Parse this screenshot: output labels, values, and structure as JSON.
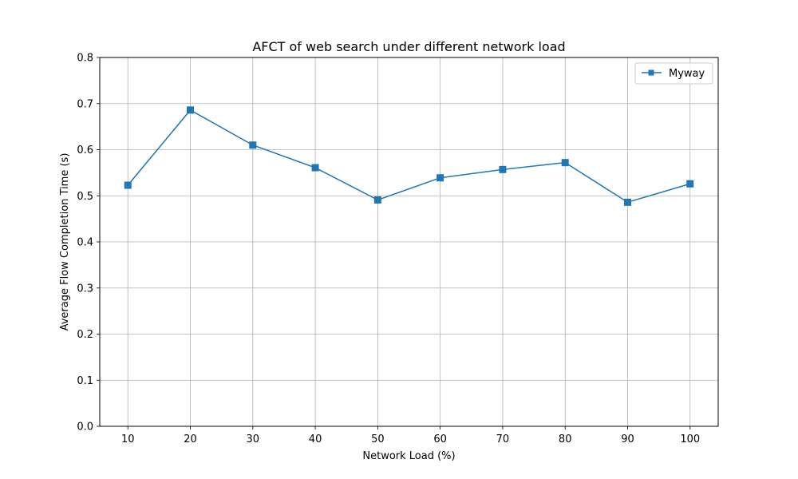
{
  "chart_data": {
    "type": "line",
    "title": "AFCT of web search under different network load",
    "xlabel": "Network Load (%)",
    "ylabel": "Average Flow Completion Time (s)",
    "x": [
      10,
      20,
      30,
      40,
      50,
      60,
      70,
      80,
      90,
      100
    ],
    "xticks": [
      "10",
      "20",
      "30",
      "40",
      "50",
      "60",
      "70",
      "80",
      "90",
      "100"
    ],
    "yticks": [
      "0.0",
      "0.1",
      "0.2",
      "0.3",
      "0.4",
      "0.5",
      "0.6",
      "0.7",
      "0.8"
    ],
    "ylim": [
      0,
      0.8
    ],
    "xlim": [
      5.5,
      104.5
    ],
    "grid": true,
    "legend_position": "top-right",
    "series": [
      {
        "name": "Myway",
        "color": "#1f77b4",
        "marker": "square",
        "values": [
          0.523,
          0.686,
          0.61,
          0.561,
          0.491,
          0.539,
          0.557,
          0.572,
          0.486,
          0.526
        ]
      }
    ]
  }
}
